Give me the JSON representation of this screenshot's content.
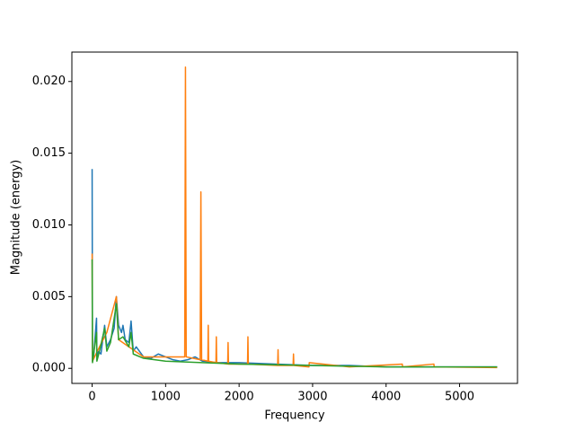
{
  "chart_data": {
    "type": "line",
    "xlabel": "Frequency",
    "ylabel": "Magnitude (energy)",
    "xlim": [
      -275.6,
      5788.1
    ],
    "xticks": [
      0,
      1000,
      2000,
      3000,
      4000,
      5000
    ],
    "ylim": [
      -0.00105,
      0.02205
    ],
    "yticks": [
      {
        "value": 0,
        "label": "0.000"
      },
      {
        "value": 0.005,
        "label": "0.005"
      },
      {
        "value": 0.01,
        "label": "0.010"
      },
      {
        "value": 0.015,
        "label": "0.015"
      },
      {
        "value": 0.02,
        "label": "0.020"
      }
    ],
    "grid": false,
    "series": [
      {
        "color": "#1f77b4",
        "x": [
          0,
          5,
          20,
          60,
          65,
          80,
          120,
          170,
          200,
          250,
          300,
          330,
          360,
          400,
          420,
          450,
          500,
          530,
          560,
          600,
          700,
          800,
          900,
          1000,
          1100,
          1200,
          1300,
          1400,
          1500,
          1700,
          2000,
          2500,
          3000,
          3500,
          4000,
          4500,
          5000,
          5512
        ],
        "values": [
          0.0139,
          0.0005,
          0.0008,
          0.0035,
          0.0006,
          0.0012,
          0.001,
          0.003,
          0.0015,
          0.002,
          0.0028,
          0.005,
          0.003,
          0.0025,
          0.003,
          0.002,
          0.0018,
          0.0033,
          0.0012,
          0.0015,
          0.0008,
          0.0007,
          0.001,
          0.0008,
          0.0006,
          0.0005,
          0.0006,
          0.0008,
          0.0005,
          0.0004,
          0.0004,
          0.0003,
          0.0002,
          0.0002,
          0.0001,
          0.0001,
          0.0001,
          0.0001
        ]
      },
      {
        "color": "#ff7f0e",
        "x": [
          0,
          5,
          100,
          200,
          330,
          360,
          500,
          700,
          1000,
          1260,
          1270,
          1280,
          1470,
          1480,
          1490,
          1575,
          1580,
          1585,
          1685,
          1690,
          1695,
          1845,
          1850,
          1855,
          2115,
          2120,
          2125,
          2525,
          2530,
          2535,
          2735,
          2740,
          2745,
          2950,
          2955,
          3500,
          4220,
          4225,
          4650,
          4655,
          5512
        ],
        "values": [
          0.008,
          0.0005,
          0.0015,
          0.0025,
          0.005,
          0.002,
          0.0015,
          0.0008,
          0.0008,
          0.0008,
          0.021,
          0.0008,
          0.0006,
          0.0123,
          0.0006,
          0.0005,
          0.003,
          0.0005,
          0.0004,
          0.0022,
          0.0004,
          0.0003,
          0.0018,
          0.0003,
          0.0003,
          0.0022,
          0.0003,
          0.0002,
          0.0013,
          0.0002,
          0.0002,
          0.001,
          0.0002,
          0.0001,
          0.0004,
          0.0001,
          0.0003,
          0.0001,
          0.0003,
          0.0001,
          5e-05
        ]
      },
      {
        "color": "#2ca02c",
        "x": [
          0,
          5,
          60,
          65,
          100,
          170,
          200,
          250,
          330,
          360,
          420,
          500,
          530,
          560,
          700,
          1000,
          1500,
          2000,
          3000,
          4000,
          5512
        ],
        "values": [
          0.0076,
          0.0004,
          0.0025,
          0.0005,
          0.0012,
          0.0028,
          0.0012,
          0.0018,
          0.0045,
          0.002,
          0.0022,
          0.0015,
          0.0025,
          0.001,
          0.0007,
          0.0005,
          0.0004,
          0.0003,
          0.0002,
          0.0001,
          0.0001
        ]
      }
    ]
  }
}
